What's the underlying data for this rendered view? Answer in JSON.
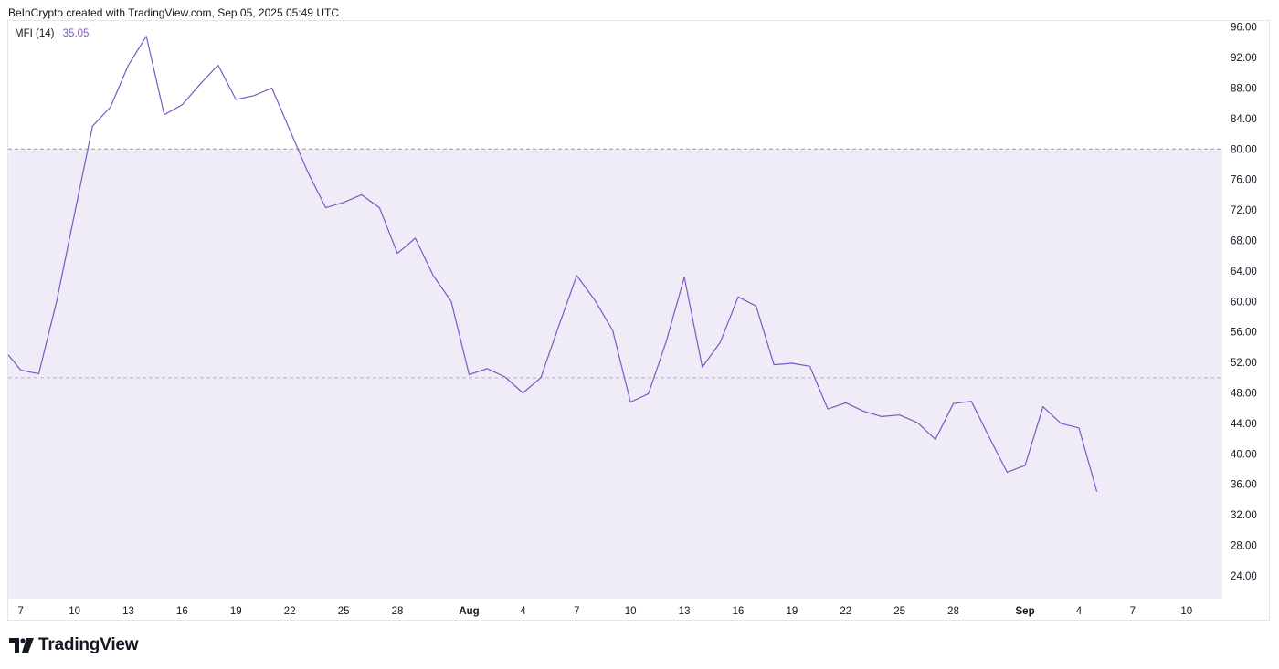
{
  "header": {
    "attribution": "BeInCrypto created with TradingView.com, Sep 05, 2025 05:49 UTC"
  },
  "legend": {
    "indicator": "MFI (14)",
    "value": "35.05"
  },
  "brand": {
    "name": "TradingView"
  },
  "colors": {
    "line": "#7e57c2",
    "band": "#efecf8",
    "dashed": "#9598a1",
    "tick": "#131722",
    "grid_border": "#e6e6e6"
  },
  "chart_data": {
    "type": "line",
    "title": "",
    "xlabel": "",
    "ylabel": "",
    "ylim": [
      21,
      96.8
    ],
    "xlim": [
      6.3,
      74
    ],
    "y_ticks": [
      96,
      92,
      88,
      84,
      80,
      76,
      72,
      68,
      64,
      60,
      56,
      52,
      48,
      44,
      40,
      36,
      32,
      28,
      24
    ],
    "x_ticks": [
      {
        "pos": 7,
        "label": "7",
        "bold": false
      },
      {
        "pos": 10,
        "label": "10",
        "bold": false
      },
      {
        "pos": 13,
        "label": "13",
        "bold": false
      },
      {
        "pos": 16,
        "label": "16",
        "bold": false
      },
      {
        "pos": 19,
        "label": "19",
        "bold": false
      },
      {
        "pos": 22,
        "label": "22",
        "bold": false
      },
      {
        "pos": 25,
        "label": "25",
        "bold": false
      },
      {
        "pos": 28,
        "label": "28",
        "bold": false
      },
      {
        "pos": 32,
        "label": "Aug",
        "bold": true
      },
      {
        "pos": 35,
        "label": "4",
        "bold": false
      },
      {
        "pos": 38,
        "label": "7",
        "bold": false
      },
      {
        "pos": 41,
        "label": "10",
        "bold": false
      },
      {
        "pos": 44,
        "label": "13",
        "bold": false
      },
      {
        "pos": 47,
        "label": "16",
        "bold": false
      },
      {
        "pos": 50,
        "label": "19",
        "bold": false
      },
      {
        "pos": 53,
        "label": "22",
        "bold": false
      },
      {
        "pos": 56,
        "label": "25",
        "bold": false
      },
      {
        "pos": 59,
        "label": "28",
        "bold": false
      },
      {
        "pos": 63,
        "label": "Sep",
        "bold": true
      },
      {
        "pos": 66,
        "label": "4",
        "bold": false
      },
      {
        "pos": 69,
        "label": "7",
        "bold": false
      },
      {
        "pos": 72,
        "label": "10",
        "bold": false
      }
    ],
    "bands": {
      "upper": 80,
      "lower": 20,
      "middle": 50
    },
    "series": [
      {
        "values": [
          [
            6.3,
            53.0
          ],
          [
            7,
            51.0
          ],
          [
            8,
            50.5
          ],
          [
            9,
            60.0
          ],
          [
            10,
            71.5
          ],
          [
            11,
            83.0
          ],
          [
            12,
            85.5
          ],
          [
            13,
            91.0
          ],
          [
            14,
            94.8
          ],
          [
            15,
            84.5
          ],
          [
            16,
            85.8
          ],
          [
            17,
            88.5
          ],
          [
            18,
            91.0
          ],
          [
            19,
            86.5
          ],
          [
            20,
            87.0
          ],
          [
            21,
            88.0
          ],
          [
            22,
            82.5
          ],
          [
            23,
            77.0
          ],
          [
            24,
            72.3
          ],
          [
            25,
            73.0
          ],
          [
            26,
            74.0
          ],
          [
            27,
            72.3
          ],
          [
            28,
            66.3
          ],
          [
            29,
            68.3
          ],
          [
            30,
            63.4
          ],
          [
            31,
            60.0
          ],
          [
            32,
            50.4
          ],
          [
            33,
            51.2
          ],
          [
            34,
            50.1
          ],
          [
            35,
            48.0
          ],
          [
            36,
            50.0
          ],
          [
            37,
            56.8
          ],
          [
            38,
            63.4
          ],
          [
            39,
            60.2
          ],
          [
            40,
            56.2
          ],
          [
            41,
            46.8
          ],
          [
            42,
            47.9
          ],
          [
            43,
            54.8
          ],
          [
            44,
            63.2
          ],
          [
            45,
            51.4
          ],
          [
            46,
            54.6
          ],
          [
            47,
            60.6
          ],
          [
            48,
            59.4
          ],
          [
            49,
            51.7
          ],
          [
            50,
            51.9
          ],
          [
            51,
            51.5
          ],
          [
            52,
            45.9
          ],
          [
            53,
            46.7
          ],
          [
            54,
            45.6
          ],
          [
            55,
            44.9
          ],
          [
            56,
            45.1
          ],
          [
            57,
            44.1
          ],
          [
            58,
            41.9
          ],
          [
            59,
            46.6
          ],
          [
            60,
            46.9
          ],
          [
            61,
            42.2
          ],
          [
            62,
            37.6
          ],
          [
            63,
            38.5
          ],
          [
            64,
            46.2
          ],
          [
            65,
            44.0
          ],
          [
            66,
            43.4
          ],
          [
            67,
            35.05
          ]
        ]
      }
    ]
  }
}
